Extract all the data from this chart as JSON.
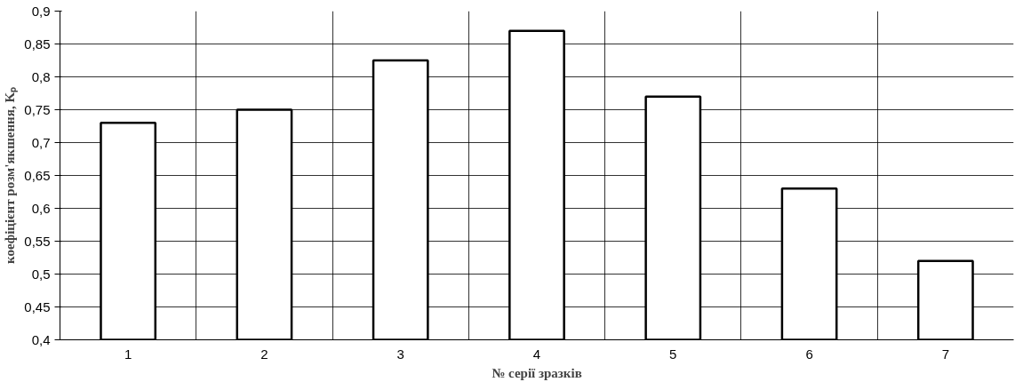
{
  "chart_data": {
    "type": "bar",
    "xlabel": "№ серії зразків",
    "ylabel": "коефіцієнт розм'якшення, Kₚ",
    "categories": [
      "1",
      "2",
      "3",
      "4",
      "5",
      "6",
      "7"
    ],
    "values": [
      0.73,
      0.75,
      0.825,
      0.87,
      0.77,
      0.63,
      0.52
    ],
    "color": "#ffffff",
    "ylim": [
      0.4,
      0.9
    ],
    "yticks": [
      {
        "value": 0.4,
        "label": "0,4"
      },
      {
        "value": 0.45,
        "label": "0,45"
      },
      {
        "value": 0.5,
        "label": "0,5"
      },
      {
        "value": 0.55,
        "label": "0,55"
      },
      {
        "value": 0.6,
        "label": "0,6"
      },
      {
        "value": 0.65,
        "label": "0,65"
      },
      {
        "value": 0.7,
        "label": "0,7"
      },
      {
        "value": 0.75,
        "label": "0,75"
      },
      {
        "value": 0.8,
        "label": "0,8"
      },
      {
        "value": 0.85,
        "label": "0,85"
      },
      {
        "value": 0.9,
        "label": "0,9"
      }
    ],
    "grid": true
  }
}
